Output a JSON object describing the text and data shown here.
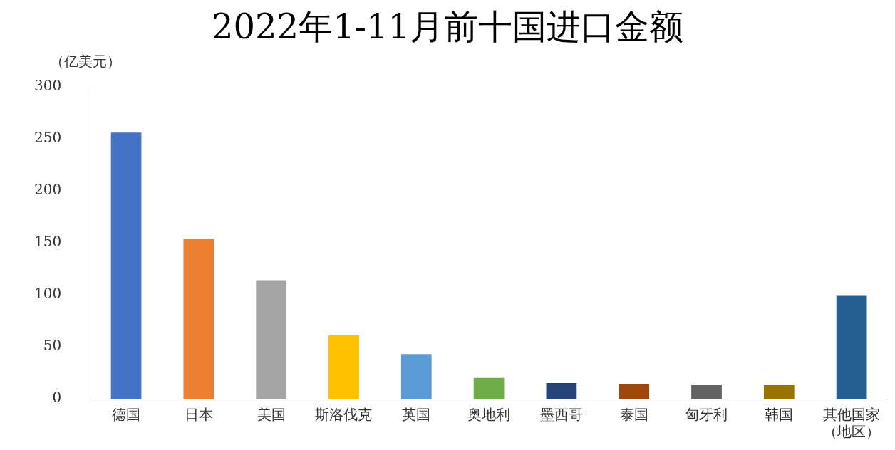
{
  "chart_data": {
    "type": "bar",
    "title": "2022年1-11月前十国进口金额",
    "ylabel": "（亿美元）",
    "categories": [
      "德国",
      "日本",
      "美国",
      "斯洛伐克",
      "英国",
      "奥地利",
      "墨西哥",
      "泰国",
      "匈牙利",
      "韩国",
      "其他国家（地区）"
    ],
    "values": [
      256,
      154,
      114,
      61,
      43,
      20,
      15,
      14,
      13,
      13,
      99
    ],
    "colors": [
      "#4472c4",
      "#ed7d31",
      "#a5a5a5",
      "#ffc000",
      "#5b9bd5",
      "#70ad47",
      "#264478",
      "#9e480e",
      "#636363",
      "#997300",
      "#255e91"
    ],
    "ylim": [
      0,
      300
    ],
    "yticks": [
      0,
      50,
      100,
      150,
      200,
      250,
      300
    ],
    "grid": false,
    "legend": false
  }
}
